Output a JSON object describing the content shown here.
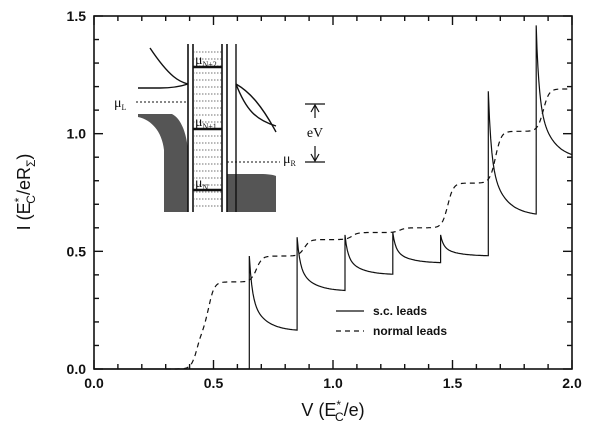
{
  "chart_data": {
    "type": "line",
    "xlabel": "V (E",
    "xlabel_sup": "*",
    "xlabel_sub": "C",
    "xlabel_tail": "/e)",
    "ylabel": "I (E",
    "ylabel_sup": "*",
    "ylabel_sub": "C",
    "ylabel_mid": "/eR",
    "ylabel_sub2": "Σ",
    "ylabel_tail": ")",
    "xlim": [
      0,
      2
    ],
    "ylim": [
      0,
      1.5
    ],
    "xticks": [
      "0.0",
      "0.5",
      "1.0",
      "1.5",
      "2.0"
    ],
    "yticks": [
      "0.0",
      "0.5",
      "1.0",
      "1.5"
    ],
    "xtick_values": [
      0,
      0.5,
      1.0,
      1.5,
      2.0
    ],
    "ytick_values": [
      0,
      0.5,
      1.0,
      1.5
    ],
    "legend_position": "lower-right",
    "series": [
      {
        "name": "s.c. leads",
        "style": "solid",
        "jumps": [
          {
            "v": 0.65,
            "peak": 0.48,
            "floor": 0.16
          },
          {
            "v": 0.85,
            "peak": 0.56,
            "floor": 0.33
          },
          {
            "v": 1.05,
            "peak": 0.57,
            "floor": 0.4
          },
          {
            "v": 1.25,
            "peak": 0.58,
            "floor": 0.45
          },
          {
            "v": 1.45,
            "peak": 0.57,
            "floor": 0.48
          },
          {
            "v": 1.65,
            "peak": 1.18,
            "floor": 0.65
          },
          {
            "v": 1.85,
            "peak": 1.46,
            "floor": 0.89
          }
        ]
      },
      {
        "name": "normal leads",
        "style": "dashed",
        "steps": [
          {
            "v": 0.43,
            "level": 0.0
          },
          {
            "v": 0.48,
            "level": 0.16
          },
          {
            "v": 0.68,
            "level": 0.37
          },
          {
            "v": 0.88,
            "level": 0.48
          },
          {
            "v": 1.08,
            "level": 0.55
          },
          {
            "v": 1.28,
            "level": 0.58
          },
          {
            "v": 1.48,
            "level": 0.6
          },
          {
            "v": 1.68,
            "level": 0.79
          },
          {
            "v": 1.88,
            "level": 1.01
          }
        ],
        "end_level": 1.19
      }
    ],
    "inset": {
      "labels": {
        "mu_L": "μ",
        "mu_L_sub": "L",
        "mu_R": "μ",
        "mu_R_sub": "R",
        "mu_N": "μ",
        "mu_N_sub": "N",
        "mu_N1": "μ",
        "mu_N1_sub": "N+1",
        "mu_N2": "μ",
        "mu_N2_sub": "N+2",
        "eV": "eV"
      }
    }
  }
}
